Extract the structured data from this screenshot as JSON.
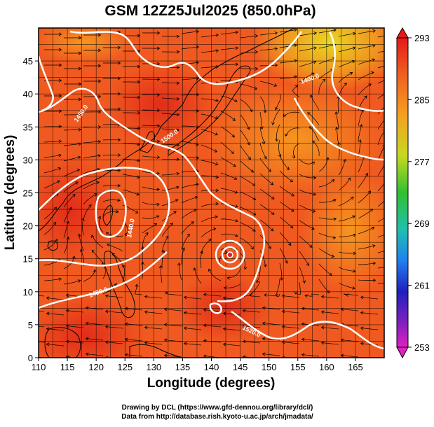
{
  "title": "GSM 12Z25Jul2025 (850.0hPa)",
  "x_axis": {
    "label": "Longitude (degrees)",
    "ticks": [
      110,
      115,
      120,
      125,
      130,
      135,
      140,
      145,
      150,
      155,
      160,
      165
    ],
    "range": [
      110,
      170
    ],
    "grid_step": 2.5
  },
  "y_axis": {
    "label": "Latitude  (degrees)",
    "ticks": [
      0,
      5,
      10,
      15,
      20,
      25,
      30,
      35,
      40,
      45
    ],
    "range": [
      0,
      50
    ],
    "grid_step": 2.5
  },
  "colorbar": {
    "ticks": [
      293,
      285,
      277,
      269,
      261,
      253
    ],
    "range": [
      253,
      293
    ]
  },
  "contour_labels": [
    "1400.0",
    "1450.0",
    "1500.0",
    "1520.0",
    "1440.0",
    "1480.0",
    "1540.0"
  ],
  "credits": {
    "line1": "Drawing by DCL (https://www.gfd-dennou.org/library/dcl/)",
    "line2": "Data from http://database.rish.kyoto-u.ac.jp/arch/jmadata/"
  },
  "colors": {
    "field_base": "#f05a20",
    "field_warm": "#e8361a",
    "field_cool": "#f7a020",
    "field_yellow": "#e8e020",
    "contour": "#ffffff",
    "streamline": "#000000"
  }
}
